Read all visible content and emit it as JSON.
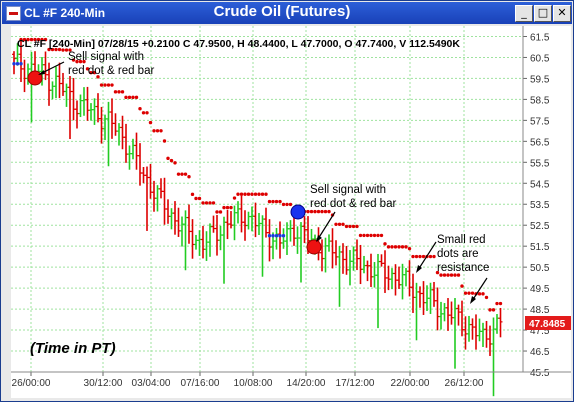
{
  "window": {
    "title": "CL #F 240-Min",
    "chart_title": "Crude Oil (Futures)",
    "buttons": {
      "minimize": "_",
      "maximize": "□",
      "close": "✕"
    }
  },
  "legend": "CL #F [240-Min] 07/28/15 +0.2100 C 47.9500, H 48.4400, L 47.7000, O 47.7400, V 112.5490K",
  "annotations": {
    "sell_signal_1": [
      "Sell signal with",
      "red dot & red bar"
    ],
    "sell_signal_2": [
      "Sell signal with",
      "red dot & red bar"
    ],
    "resistance": [
      "Small red",
      "dots are",
      "resistance"
    ],
    "time_note": "(Time in PT)"
  },
  "last_price": "47.8485",
  "colors": {
    "up_bar": "#22cc22",
    "down_bar": "#dd0000",
    "resistance_dot": "#dd0000",
    "support_dot": "#1a3bdd",
    "grid": "#9fe39f",
    "price_tag": "#e31b1b"
  },
  "chart_data": {
    "type": "ohlc",
    "instrument": "CL #F",
    "interval": "240-Min",
    "ylim": [
      45.5,
      62
    ],
    "y_ticks": [
      "61.5",
      "60.5",
      "59.5",
      "58.5",
      "57.5",
      "56.5",
      "55.5",
      "54.5",
      "53.5",
      "52.5",
      "51.5",
      "50.5",
      "49.5",
      "48.5",
      "47.5",
      "46.5",
      "45.5"
    ],
    "x_ticks": [
      "26/00:00",
      "30/12:00",
      "03/04:00",
      "07/16:00",
      "10/08:00",
      "14/20:00",
      "17/12:00",
      "22/00:00",
      "26/12:00"
    ],
    "last": {
      "open": 47.74,
      "high": 48.44,
      "low": 47.7,
      "close": 47.95,
      "change": 0.21,
      "volume": "112.5490K"
    },
    "approx_close_path": [
      {
        "bar": 0,
        "close": 60.2
      },
      {
        "bar": 6,
        "close": 59.9
      },
      {
        "bar": 12,
        "close": 59.3
      },
      {
        "bar": 18,
        "close": 58.3
      },
      {
        "bar": 24,
        "close": 57.8
      },
      {
        "bar": 30,
        "close": 57.0
      },
      {
        "bar": 36,
        "close": 55.2
      },
      {
        "bar": 42,
        "close": 53.6
      },
      {
        "bar": 48,
        "close": 52.4
      },
      {
        "bar": 54,
        "close": 51.6
      },
      {
        "bar": 60,
        "close": 52.5
      },
      {
        "bar": 66,
        "close": 53.0
      },
      {
        "bar": 72,
        "close": 52.2
      },
      {
        "bar": 76,
        "close": 51.6
      },
      {
        "bar": 80,
        "close": 52.4
      },
      {
        "bar": 86,
        "close": 51.6
      },
      {
        "bar": 92,
        "close": 51.1
      },
      {
        "bar": 98,
        "close": 50.7
      },
      {
        "bar": 104,
        "close": 50.3
      },
      {
        "bar": 110,
        "close": 50.0
      },
      {
        "bar": 116,
        "close": 49.2
      },
      {
        "bar": 122,
        "close": 48.5
      },
      {
        "bar": 128,
        "close": 47.9
      },
      {
        "bar": 134,
        "close": 47.1
      },
      {
        "bar": 139,
        "close": 47.9
      }
    ],
    "signals": [
      {
        "type": "sell",
        "bar": 7,
        "price": 59.9
      },
      {
        "type": "sell",
        "bar": 77,
        "price": 51.5
      },
      {
        "type": "marker",
        "bar": 76,
        "price": 53.3
      }
    ]
  }
}
